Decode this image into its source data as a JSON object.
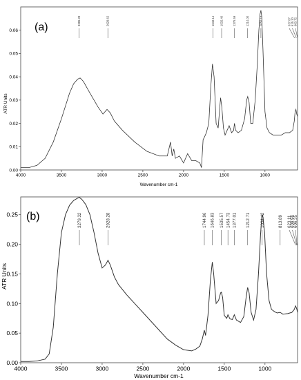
{
  "chart_data": [
    {
      "type": "line",
      "panel_label": "(a)",
      "xlabel": "Wavenumber cm-1",
      "ylabel": "ATR Units",
      "xlim": [
        4000,
        600
      ],
      "ylim": [
        0,
        0.07
      ],
      "x_ticks": [
        "4000",
        "3500",
        "3000",
        "2500",
        "2000",
        "1500",
        "1000"
      ],
      "x_tick_values": [
        4000,
        3500,
        3000,
        2500,
        2000,
        1500,
        1000
      ],
      "y_ticks": [
        "0.00",
        "0.01",
        "0.02",
        "0.03",
        "0.04",
        "0.05",
        "0.06"
      ],
      "y_tick_values": [
        0.0,
        0.01,
        0.02,
        0.03,
        0.04,
        0.05,
        0.06
      ],
      "peak_labels": [
        {
          "label": "3285.28",
          "x": 3285.28
        },
        {
          "label": "2929.62",
          "x": 2929.62
        },
        {
          "label": "1640.14",
          "x": 1640.14
        },
        {
          "label": "1532.40",
          "x": 1532.4
        },
        {
          "label": "1375.59",
          "x": 1375.59
        },
        {
          "label": "1214.00",
          "x": 1214.0
        },
        {
          "label": "1050.18",
          "x": 1050.18
        },
        {
          "label": "637.07",
          "x": 637.07
        },
        {
          "label": "615.10",
          "x": 615.1
        },
        {
          "label": "600.72",
          "x": 600.72
        }
      ],
      "series": [
        {
          "x": [
            4000,
            3900,
            3800,
            3700,
            3600,
            3500,
            3400,
            3350,
            3300,
            3270,
            3230,
            3150,
            3050,
            2990,
            2940,
            2900,
            2850,
            2750,
            2600,
            2450,
            2300,
            2200,
            2160,
            2140,
            2120,
            2100,
            2050,
            2000,
            1950,
            1900,
            1850,
            1800,
            1780,
            1760,
            1745,
            1720,
            1690,
            1665,
            1645,
            1625,
            1600,
            1575,
            1555,
            1545,
            1530,
            1510,
            1490,
            1465,
            1440,
            1410,
            1385,
            1375,
            1360,
            1330,
            1290,
            1250,
            1225,
            1212,
            1195,
            1175,
            1150,
            1120,
            1095,
            1075,
            1060,
            1050,
            1040,
            1025,
            1000,
            975,
            945,
            900,
            850,
            800,
            750,
            700,
            660,
            640,
            630,
            620,
            610,
            600
          ],
          "y": [
            0.001,
            0.001,
            0.002,
            0.005,
            0.012,
            0.022,
            0.033,
            0.037,
            0.039,
            0.0395,
            0.038,
            0.033,
            0.027,
            0.024,
            0.026,
            0.0245,
            0.021,
            0.017,
            0.012,
            0.008,
            0.006,
            0.006,
            0.012,
            0.006,
            0.009,
            0.005,
            0.006,
            0.003,
            0.007,
            0.004,
            0.004,
            0.003,
            0.001,
            0.013,
            0.014,
            0.016,
            0.02,
            0.036,
            0.0455,
            0.04,
            0.02,
            0.018,
            0.027,
            0.031,
            0.027,
            0.018,
            0.015,
            0.017,
            0.019,
            0.016,
            0.017,
            0.02,
            0.017,
            0.016,
            0.017,
            0.022,
            0.03,
            0.0315,
            0.029,
            0.02,
            0.02,
            0.03,
            0.045,
            0.06,
            0.067,
            0.0685,
            0.066,
            0.052,
            0.025,
            0.018,
            0.016,
            0.015,
            0.015,
            0.015,
            0.016,
            0.016,
            0.017,
            0.021,
            0.025,
            0.026,
            0.024,
            0.023
          ]
        }
      ]
    },
    {
      "type": "line",
      "panel_label": "(b)",
      "xlabel": "Wavenumber cm-1",
      "ylabel": "ATR Units",
      "xlim": [
        4000,
        600
      ],
      "ylim": [
        0,
        0.28
      ],
      "x_ticks": [
        "4000",
        "3500",
        "3000",
        "2500",
        "2000",
        "1500",
        "1000"
      ],
      "x_tick_values": [
        4000,
        3500,
        3000,
        2500,
        2000,
        1500,
        1000
      ],
      "y_ticks": [
        "0.00",
        "0.05",
        "0.10",
        "0.15",
        "0.20",
        "0.25"
      ],
      "y_tick_values": [
        0.0,
        0.05,
        0.1,
        0.15,
        0.2,
        0.25
      ],
      "peak_labels": [
        {
          "label": "3279.32",
          "x": 3279.32
        },
        {
          "label": "2928.28",
          "x": 2928.28
        },
        {
          "label": "1744.96",
          "x": 1744.96
        },
        {
          "label": "1646.83",
          "x": 1646.83
        },
        {
          "label": "1535.57",
          "x": 1535.57
        },
        {
          "label": "1454.73",
          "x": 1454.73
        },
        {
          "label": "1377.01",
          "x": 1377.01
        },
        {
          "label": "1212.71",
          "x": 1212.71
        },
        {
          "label": "1034.42",
          "x": 1034.42
        },
        {
          "label": "813.89",
          "x": 813.89
        },
        {
          "label": "623.11",
          "x": 623.11
        },
        {
          "label": "609.96",
          "x": 609.96
        },
        {
          "label": "606.35",
          "x": 606.35
        }
      ],
      "series": [
        {
          "x": [
            4000,
            3900,
            3800,
            3700,
            3650,
            3600,
            3550,
            3500,
            3450,
            3400,
            3350,
            3300,
            3279,
            3250,
            3200,
            3150,
            3100,
            3050,
            3000,
            2960,
            2928,
            2900,
            2850,
            2800,
            2700,
            2600,
            2500,
            2400,
            2300,
            2200,
            2100,
            2000,
            1900,
            1850,
            1800,
            1770,
            1745,
            1730,
            1700,
            1670,
            1647,
            1630,
            1600,
            1570,
            1545,
            1535,
            1520,
            1500,
            1470,
            1455,
            1430,
            1400,
            1377,
            1350,
            1300,
            1260,
            1230,
            1213,
            1195,
            1170,
            1140,
            1110,
            1080,
            1055,
            1040,
            1034,
            1025,
            1005,
            980,
            950,
            920,
            880,
            850,
            814,
            780,
            720,
            670,
            640,
            625,
            615,
            608,
            600
          ],
          "y": [
            0.002,
            0.002,
            0.003,
            0.006,
            0.015,
            0.06,
            0.15,
            0.22,
            0.25,
            0.266,
            0.274,
            0.278,
            0.279,
            0.276,
            0.267,
            0.25,
            0.22,
            0.185,
            0.16,
            0.165,
            0.173,
            0.165,
            0.145,
            0.132,
            0.115,
            0.1,
            0.085,
            0.07,
            0.055,
            0.04,
            0.03,
            0.022,
            0.02,
            0.023,
            0.028,
            0.04,
            0.055,
            0.046,
            0.08,
            0.14,
            0.17,
            0.15,
            0.1,
            0.105,
            0.118,
            0.119,
            0.11,
            0.08,
            0.075,
            0.081,
            0.074,
            0.073,
            0.081,
            0.072,
            0.068,
            0.078,
            0.112,
            0.127,
            0.118,
            0.085,
            0.072,
            0.09,
            0.15,
            0.215,
            0.246,
            0.25,
            0.246,
            0.22,
            0.15,
            0.105,
            0.09,
            0.086,
            0.084,
            0.085,
            0.082,
            0.083,
            0.085,
            0.09,
            0.096,
            0.093,
            0.09,
            0.085
          ]
        }
      ]
    }
  ]
}
